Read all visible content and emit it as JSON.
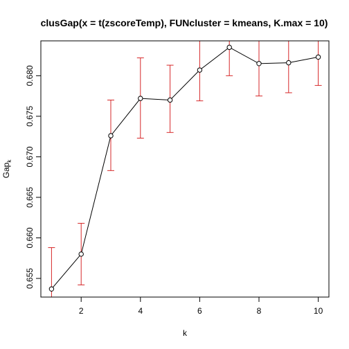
{
  "chart_data": {
    "type": "scatter",
    "title": "clusGap(x = t(zscoreTemp), FUNcluster = kmeans, K.max = 10)",
    "xlabel": "k",
    "ylabel_main": "Gap",
    "ylabel_sub": "k",
    "x": [
      1,
      2,
      3,
      4,
      5,
      6,
      7,
      8,
      9,
      10
    ],
    "y": [
      0.6537,
      0.658,
      0.6726,
      0.6772,
      0.677,
      0.6807,
      0.6835,
      0.6815,
      0.6816,
      0.6823
    ],
    "error_low": [
      0.6486,
      0.6542,
      0.6683,
      0.6723,
      0.673,
      0.6769,
      0.68,
      0.6775,
      0.6779,
      0.6788
    ],
    "error_high": [
      0.6588,
      0.6618,
      0.677,
      0.6822,
      0.6813,
      0.6845,
      0.687,
      0.6855,
      0.6854,
      0.6858
    ],
    "xlim": [
      0.64,
      10.36
    ],
    "ylim": [
      0.6527,
      0.6843
    ],
    "xticks": [
      2,
      4,
      6,
      8,
      10
    ],
    "yticks": [
      0.655,
      0.66,
      0.665,
      0.67,
      0.675,
      0.68
    ],
    "ytick_labels": [
      "0.655",
      "0.660",
      "0.665",
      "0.670",
      "0.675",
      "0.680"
    ],
    "grid": false,
    "colors": {
      "line": "#000000",
      "points": "#000000",
      "error_bars": "#d62728",
      "frame": "#000000"
    }
  }
}
